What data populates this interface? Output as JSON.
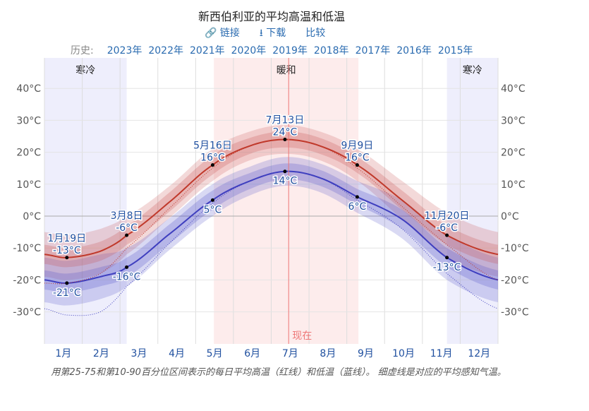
{
  "title": "新西伯利亚的平均高温和低温",
  "links": {
    "link": "链接",
    "link_icon": "link-icon",
    "download": "下载",
    "download_icon": "download-icon",
    "compare": "比较"
  },
  "history": {
    "label": "历史:",
    "years": [
      "2023年",
      "2022年",
      "2021年",
      "2020年",
      "2019年",
      "2018年",
      "2017年",
      "2016年",
      "2015年"
    ]
  },
  "caption": "用第25-75和第10-90百分位区间表示的每日平均高温（红线）和低温（蓝线）。 细虚线是对应的平均感知气温。",
  "chart_data": {
    "type": "line",
    "months": [
      "1月",
      "2月",
      "3月",
      "4月",
      "5月",
      "6月",
      "7月",
      "8月",
      "9月",
      "10月",
      "11月",
      "12月"
    ],
    "yticks": [
      "40°C",
      "30°C",
      "20°C",
      "10°C",
      "0°C",
      "-10°C",
      "-20°C",
      "-30°C"
    ],
    "ytick_values": [
      40,
      30,
      20,
      10,
      0,
      -10,
      -20,
      -30
    ],
    "ylim": [
      -40,
      48
    ],
    "x_days": [
      1,
      19,
      46,
      67,
      100,
      136,
      166,
      194,
      222,
      252,
      288,
      324,
      365
    ],
    "series": [
      {
        "key": "high",
        "color": "#c0392b",
        "values": [
          -12,
          -13,
          -11,
          -6,
          4,
          16,
          22,
          24,
          22,
          16,
          5,
          -6,
          -12
        ]
      },
      {
        "key": "low",
        "color": "#3f3fbf",
        "values": [
          -20,
          -21,
          -19,
          -16,
          -6,
          5,
          11,
          14,
          12,
          6,
          -1,
          -13,
          -20
        ]
      },
      {
        "key": "feels_high",
        "color": "#c0392b",
        "dotted": true,
        "values": [
          -21,
          -21,
          -18,
          -10,
          2,
          15,
          22,
          24,
          22,
          15,
          3,
          -9,
          -20
        ]
      },
      {
        "key": "feels_low",
        "color": "#3f3fbf",
        "dotted": true,
        "values": [
          -29,
          -31,
          -30,
          -22,
          -9,
          4,
          11,
          14,
          12,
          5,
          -4,
          -18,
          -29
        ]
      }
    ],
    "band_25_75_halfwidth": [
      3,
      3,
      3,
      3,
      3,
      3,
      2.5,
      2.5,
      2.5,
      2.5,
      3,
      3,
      3
    ],
    "band_10_90_halfwidth": [
      7,
      7,
      7,
      6,
      5,
      5,
      4.5,
      4.5,
      4.5,
      5,
      6,
      7,
      7
    ],
    "seasons": [
      {
        "label": "寒冷",
        "from_day": 1,
        "to_day": 67,
        "color": "#eeeefc"
      },
      {
        "label": "暖和",
        "from_day": 137,
        "to_day": 253,
        "color": "#fdecec"
      },
      {
        "label": "寒冷",
        "from_day": 324,
        "to_day": 365,
        "color": "#eeeefc"
      }
    ],
    "today": {
      "label": "现在",
      "day": 197
    },
    "annotations": [
      {
        "date": "1月19日",
        "day": 19,
        "high": "-13°C",
        "low": "-21°C",
        "hv": -13,
        "lv": -21
      },
      {
        "date": "3月8日",
        "day": 67,
        "high": "-6°C",
        "low": "-16°C",
        "hv": -6,
        "lv": -16
      },
      {
        "date": "5月16日",
        "day": 136,
        "high": "16°C",
        "low": "5°C",
        "hv": 16,
        "lv": 5
      },
      {
        "date": "7月13日",
        "day": 194,
        "high": "24°C",
        "low": "14°C",
        "hv": 24,
        "lv": 14
      },
      {
        "date": "9月9日",
        "day": 252,
        "high": "16°C",
        "low": "6°C",
        "hv": 16,
        "lv": 6
      },
      {
        "date": "11月20日",
        "day": 324,
        "high": "-6°C",
        "low": "-13°C",
        "hv": -6,
        "lv": -13
      }
    ]
  }
}
